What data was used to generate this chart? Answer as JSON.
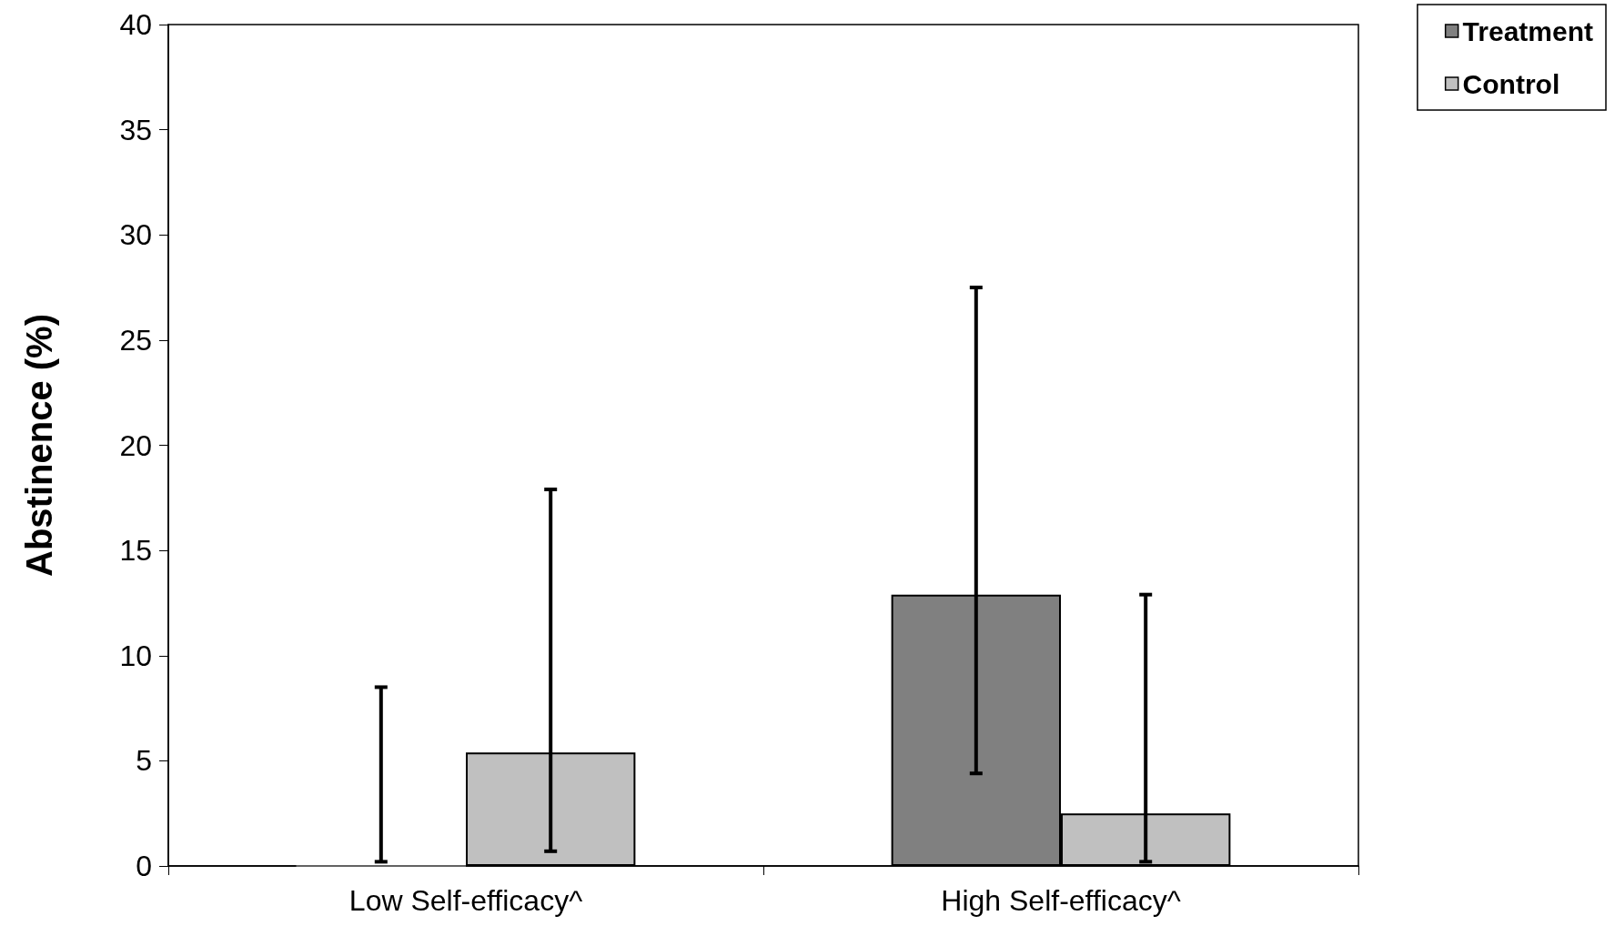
{
  "chart_data": {
    "type": "bar",
    "ylabel": "Abstinence (%)",
    "categories": [
      "Low Self-efficacy^",
      "High Self-efficacy^"
    ],
    "series": [
      {
        "name": "Treatment",
        "color": "#808080",
        "values": [
          0,
          12.9
        ],
        "errors": [
          [
            0.2,
            8.5
          ],
          [
            4.4,
            27.5
          ]
        ]
      },
      {
        "name": "Control",
        "color": "#c0c0c0",
        "values": [
          5.4,
          2.5
        ],
        "errors": [
          [
            0.7,
            17.9
          ],
          [
            0.2,
            12.9
          ]
        ]
      }
    ],
    "ylim": [
      0,
      40
    ],
    "yticks": [
      0,
      5,
      10,
      15,
      20,
      25,
      30,
      35,
      40
    ],
    "grid": false,
    "legend": "top right"
  }
}
